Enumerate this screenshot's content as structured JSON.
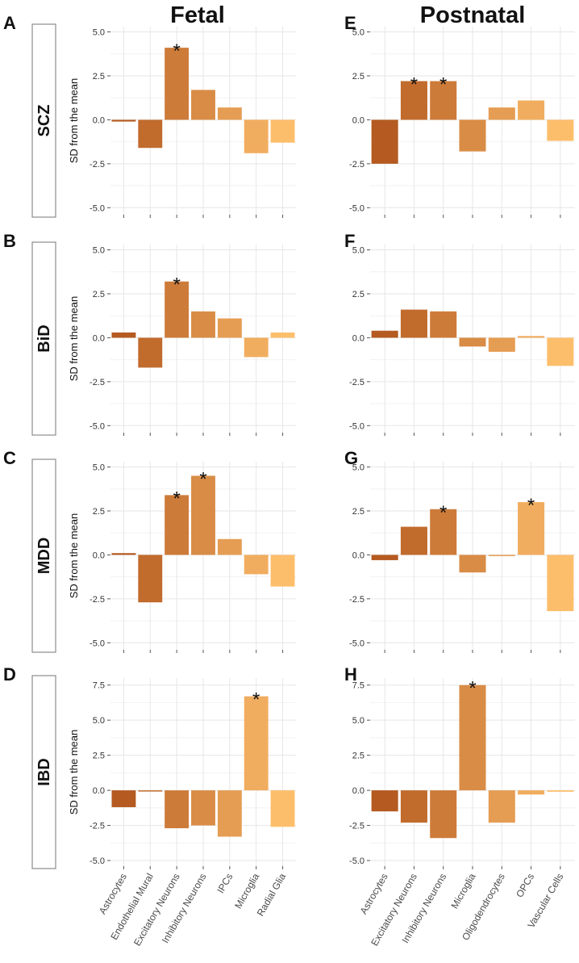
{
  "figure": {
    "col_titles": [
      "Fetal",
      "Postnatal"
    ],
    "row_labels": [
      "SCZ",
      "BiD",
      "MDD",
      "IBD"
    ],
    "ylabel": "SD from the mean"
  },
  "colors": {
    "bar_palette_dark": "#b55a20",
    "bar_palette_light": "#fdbe6c",
    "grid": "#e6e6e6",
    "axis": "#555555"
  },
  "chart_data": [
    {
      "type": "bar",
      "panel": "A",
      "row": "SCZ",
      "column": "Fetal",
      "categories": [
        "Astrocytes",
        "Endothelial Mural",
        "Excitatory Neurons",
        "Inhibitory Neurons",
        "IPCs",
        "Microglia",
        "Radial Glia"
      ],
      "values": [
        -0.1,
        -1.6,
        4.1,
        1.7,
        0.7,
        -1.9,
        -1.3
      ],
      "significant": [
        false,
        false,
        true,
        false,
        false,
        false,
        false
      ],
      "ylim": [
        -5.4,
        5.3
      ],
      "yticks": [
        "5.0",
        "2.5",
        "0.0",
        "-2.5",
        "-5.0"
      ],
      "ylabel": "SD from the mean",
      "grid": true
    },
    {
      "type": "bar",
      "panel": "B",
      "row": "BiD",
      "column": "Fetal",
      "categories": [
        "Astrocytes",
        "Endothelial Mural",
        "Excitatory Neurons",
        "Inhibitory Neurons",
        "IPCs",
        "Microglia",
        "Radial Glia"
      ],
      "values": [
        0.3,
        -1.7,
        3.2,
        1.5,
        1.1,
        -1.1,
        0.3
      ],
      "significant": [
        false,
        false,
        true,
        false,
        false,
        false,
        false
      ],
      "ylim": [
        -5.4,
        5.3
      ],
      "yticks": [
        "5.0",
        "2.5",
        "0.0",
        "-2.5",
        "-5.0"
      ],
      "ylabel": "SD from the mean",
      "grid": true
    },
    {
      "type": "bar",
      "panel": "C",
      "row": "MDD",
      "column": "Fetal",
      "categories": [
        "Astrocytes",
        "Endothelial Mural",
        "Excitatory Neurons",
        "Inhibitory Neurons",
        "IPCs",
        "Microglia",
        "Radial Glia"
      ],
      "values": [
        0.1,
        -2.7,
        3.4,
        4.5,
        0.9,
        -1.1,
        -1.8
      ],
      "significant": [
        false,
        false,
        true,
        true,
        false,
        false,
        false
      ],
      "ylim": [
        -5.4,
        5.3
      ],
      "yticks": [
        "5.0",
        "2.5",
        "0.0",
        "-2.5",
        "-5.0"
      ],
      "ylabel": "SD from the mean",
      "grid": true
    },
    {
      "type": "bar",
      "panel": "D",
      "row": "IBD",
      "column": "Fetal",
      "categories": [
        "Astrocytes",
        "Endothelial Mural",
        "Excitatory Neurons",
        "Inhibitory Neurons",
        "IPCs",
        "Microglia",
        "Radial Glia"
      ],
      "values": [
        -1.2,
        0.0,
        -2.7,
        -2.5,
        -3.3,
        6.7,
        -2.6
      ],
      "significant": [
        false,
        false,
        false,
        false,
        false,
        true,
        false
      ],
      "ylim": [
        -5.4,
        8.0
      ],
      "yticks": [
        "7.5",
        "5.0",
        "2.5",
        "0.0",
        "-2.5",
        "-5.0"
      ],
      "ylabel": "SD from the mean",
      "grid": true
    },
    {
      "type": "bar",
      "panel": "E",
      "row": "SCZ",
      "column": "Postnatal",
      "categories": [
        "Astrocytes",
        "Excitatory Neurons",
        "Inhibitory Neurons",
        "Microglia",
        "Oligodendrocytes",
        "OPCs",
        "Vascular Cells"
      ],
      "values": [
        -2.5,
        2.2,
        2.2,
        -1.8,
        0.7,
        1.1,
        -1.2
      ],
      "significant": [
        false,
        true,
        true,
        false,
        false,
        false,
        false
      ],
      "ylim": [
        -5.4,
        5.3
      ],
      "yticks": [
        "5.0",
        "2.5",
        "0.0",
        "-2.5",
        "-5.0"
      ],
      "grid": true
    },
    {
      "type": "bar",
      "panel": "F",
      "row": "BiD",
      "column": "Postnatal",
      "categories": [
        "Astrocytes",
        "Excitatory Neurons",
        "Inhibitory Neurons",
        "Microglia",
        "Oligodendrocytes",
        "OPCs",
        "Vascular Cells"
      ],
      "values": [
        0.4,
        1.6,
        1.5,
        -0.5,
        -0.8,
        0.1,
        -1.6
      ],
      "significant": [
        false,
        false,
        false,
        false,
        false,
        false,
        false
      ],
      "ylim": [
        -5.4,
        5.3
      ],
      "yticks": [
        "5.0",
        "2.5",
        "0.0",
        "-2.5",
        "-5.0"
      ],
      "grid": true
    },
    {
      "type": "bar",
      "panel": "G",
      "row": "MDD",
      "column": "Postnatal",
      "categories": [
        "Astrocytes",
        "Excitatory Neurons",
        "Inhibitory Neurons",
        "Microglia",
        "Oligodendrocytes",
        "OPCs",
        "Vascular Cells"
      ],
      "values": [
        -0.3,
        1.6,
        2.6,
        -1.0,
        0.0,
        3.0,
        -3.2
      ],
      "significant": [
        false,
        false,
        true,
        false,
        false,
        true,
        false
      ],
      "ylim": [
        -5.4,
        5.3
      ],
      "yticks": [
        "5.0",
        "2.5",
        "0.0",
        "-2.5",
        "-5.0"
      ],
      "grid": true
    },
    {
      "type": "bar",
      "panel": "H",
      "row": "IBD",
      "column": "Postnatal",
      "categories": [
        "Astrocytes",
        "Excitatory Neurons",
        "Inhibitory Neurons",
        "Microglia",
        "Oligodendrocytes",
        "OPCs",
        "Vascular Cells"
      ],
      "values": [
        -1.5,
        -2.3,
        -3.4,
        7.5,
        -2.3,
        -0.3,
        -0.1
      ],
      "significant": [
        false,
        false,
        false,
        true,
        false,
        false,
        false
      ],
      "ylim": [
        -5.4,
        8.0
      ],
      "yticks": [
        "7.5",
        "5.0",
        "2.5",
        "0.0",
        "-2.5",
        "-5.0"
      ],
      "grid": true
    }
  ]
}
